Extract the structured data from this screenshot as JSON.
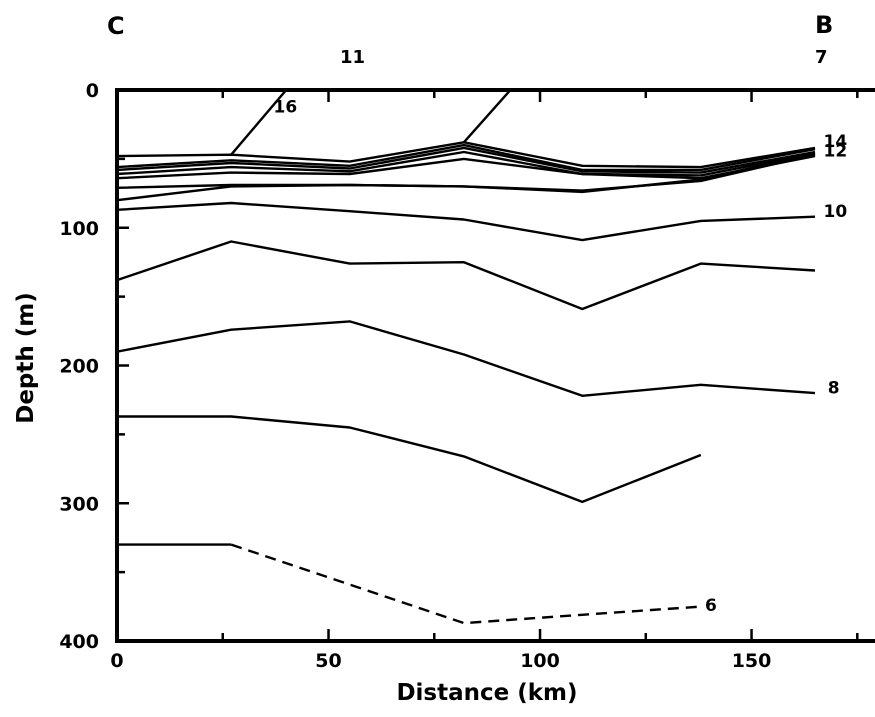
{
  "chart_data": {
    "type": "line",
    "xlabel": "Distance (km)",
    "ylabel": "Depth (m)",
    "xlim": [
      0,
      180
    ],
    "ylim": [
      400,
      0
    ],
    "x_ticks": [
      0,
      50,
      100,
      150
    ],
    "y_ticks": [
      0,
      100,
      200,
      300,
      400
    ],
    "top_labels": [
      {
        "text": "C",
        "x": 0
      },
      {
        "text": "11",
        "x": 55
      },
      {
        "text": "B",
        "x": 165
      },
      {
        "text": "7",
        "x": 165
      }
    ],
    "series": [
      {
        "name": "16",
        "label_x": 37,
        "label_y": 12,
        "x": [
          0,
          27,
          55,
          82,
          110,
          138,
          165
        ],
        "y": [
          48,
          47,
          52,
          38,
          55,
          56,
          42
        ]
      },
      {
        "name": "",
        "x": [
          27,
          40
        ],
        "y": [
          47,
          0
        ]
      },
      {
        "name": "",
        "x": [
          82,
          93
        ],
        "y": [
          38,
          0
        ]
      },
      {
        "name": "14",
        "label_x": 167,
        "label_y": 37,
        "x": [
          0,
          27,
          55,
          82,
          110,
          138,
          165
        ],
        "y": [
          56,
          51,
          55,
          40,
          58,
          58,
          43
        ]
      },
      {
        "name": "",
        "x": [
          0,
          27,
          55,
          82,
          110,
          138,
          165
        ],
        "y": [
          58,
          53,
          57,
          42,
          59,
          60,
          45
        ]
      },
      {
        "name": "12",
        "label_x": 167,
        "label_y": 44,
        "x": [
          0,
          27,
          55,
          82,
          110,
          138,
          165
        ],
        "y": [
          61,
          56,
          59,
          45,
          61,
          62,
          46
        ]
      },
      {
        "name": "",
        "x": [
          0,
          27,
          55,
          82,
          110,
          138,
          165
        ],
        "y": [
          64,
          60,
          61,
          50,
          61,
          64,
          48
        ]
      },
      {
        "name": "",
        "x": [
          0,
          27,
          55,
          82,
          110,
          138,
          165
        ],
        "y": [
          71,
          69,
          69,
          70,
          74,
          65,
          46
        ]
      },
      {
        "name": "",
        "x": [
          0,
          27,
          55,
          82,
          110,
          138,
          165
        ],
        "y": [
          80,
          70,
          69,
          70,
          73,
          66,
          47
        ]
      },
      {
        "name": "10",
        "label_x": 167,
        "label_y": 88,
        "x": [
          0,
          27,
          55,
          82,
          110,
          138,
          165
        ],
        "y": [
          87,
          82,
          88,
          94,
          109,
          95,
          92
        ]
      },
      {
        "name": "",
        "x": [
          0,
          27,
          55,
          82,
          110,
          138,
          165
        ],
        "y": [
          138,
          110,
          126,
          125,
          159,
          126,
          131
        ]
      },
      {
        "name": "",
        "x": [
          0,
          27,
          55,
          82,
          110,
          138,
          165
        ],
        "y": [
          190,
          174,
          168,
          192,
          222,
          214,
          220
        ]
      },
      {
        "name": "8",
        "label_x": 168,
        "label_y": 216,
        "x": [],
        "y": []
      },
      {
        "name": "",
        "x": [
          0,
          27,
          55,
          82,
          110,
          138
        ],
        "y": [
          237,
          237,
          245,
          266,
          299,
          265
        ]
      },
      {
        "name": "",
        "x": [
          0,
          27
        ],
        "y": [
          330,
          330
        ]
      },
      {
        "name": "6",
        "label_x": 139,
        "label_y": 374,
        "dashed": true,
        "x": [
          27,
          82,
          110,
          138
        ],
        "y": [
          330,
          387,
          381,
          375
        ]
      }
    ]
  }
}
